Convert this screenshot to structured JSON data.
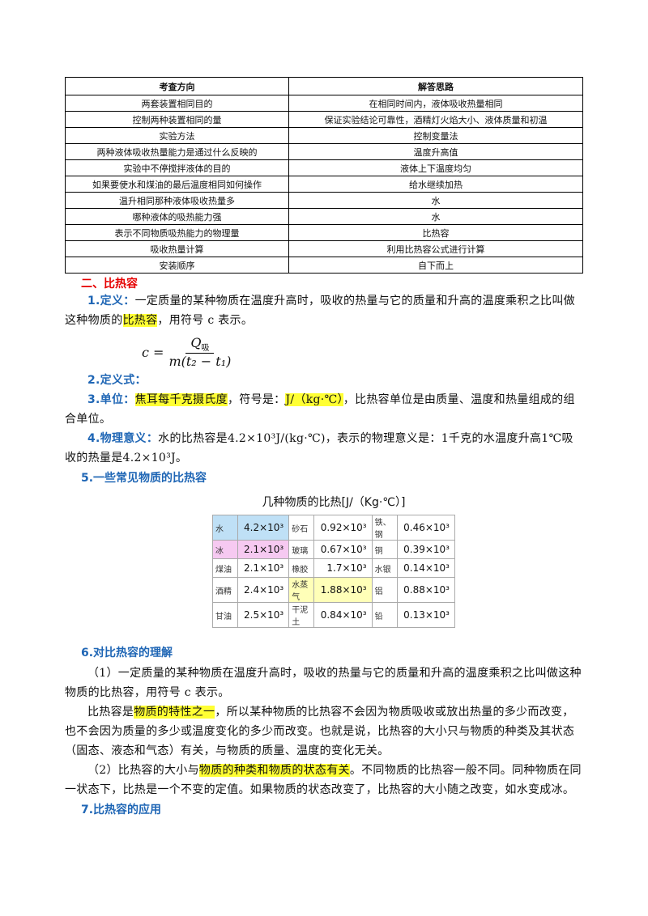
{
  "table": {
    "header": [
      "考查方向",
      "解答思路"
    ],
    "rows": [
      [
        "两套装置相同目的",
        "在相同时间内，液体吸收热量相同"
      ],
      [
        "控制两种装置相同的量",
        "保证实验结论可靠性，酒精灯火焰大小、液体质量和初温"
      ],
      [
        "实验方法",
        "控制变量法"
      ],
      [
        "两种液体吸收热量能力是通过什么反映的",
        "温度升高值"
      ],
      [
        "实验中不停搅拌液体的目的",
        "液体上下温度均匀"
      ],
      [
        "如果要使水和煤油的最后温度相同如何操作",
        "给水继续加热"
      ],
      [
        "温升相同那种液体吸收热量多",
        "水"
      ],
      [
        "哪种液体的吸热能力强",
        "水"
      ],
      [
        "表示不同物质吸热能力的物理量",
        "比热容"
      ],
      [
        "吸收热量计算",
        "利用比热容公式进行计算"
      ],
      [
        "安装顺序",
        "自下而上"
      ]
    ]
  },
  "section": {
    "title": "二、比热容",
    "items": [
      {
        "label": "1.定义：",
        "text": [
          {
            "text": "一定质量的某种物质在温度升高时，吸收的热量与它的质量和升高的温度乘积之比叫做这种物质的"
          },
          {
            "text": "比热容",
            "highlight": true
          },
          {
            "text": "，用符号 c 表示。"
          }
        ]
      },
      {
        "label": "2.定义式：",
        "formula": {
          "lhs": "c =",
          "numerator": "Q",
          "numerator_sub": "吸",
          "denominator": "m(t₂ − t₁)"
        }
      },
      {
        "label": "3.单位：",
        "text": [
          {
            "text": "焦耳每千克摄氏度",
            "highlight": true
          },
          {
            "text": "，符号是："
          },
          {
            "text": "J/（kg·℃）",
            "highlight": true
          },
          {
            "text": "，比热容单位是由质量、温度和热量组成的组合单位。"
          }
        ]
      },
      {
        "label": "4.物理意义：",
        "text": [
          {
            "text": "水的比热容是4.2×10³J/(kg·℃)，表示的物理意义是：1千克的水温度升高1℃吸收的热量是4.2×10³J。"
          }
        ]
      },
      {
        "label": "5.一些常见物质的比热容",
        "spec_table": {
          "title": "几种物质的比热[J/（Kg·℃）]",
          "rows": [
            [
              {
                "name": "水",
                "value": "4.2×10³",
                "color": "#bfe0f6"
              },
              {
                "name": "砂石",
                "value": "0.92×10³"
              },
              {
                "name": "铁、钢",
                "value": "0.46×10³"
              }
            ],
            [
              {
                "name": "冰",
                "value": "2.1×10³",
                "color": "#f6c9f1"
              },
              {
                "name": "玻璃",
                "value": "0.67×10³"
              },
              {
                "name": "铜",
                "value": "0.39×10³"
              }
            ],
            [
              {
                "name": "煤油",
                "value": "2.1×10³"
              },
              {
                "name": "橡胶",
                "value": "1.7×10³"
              },
              {
                "name": "水银",
                "value": "0.14×10³"
              }
            ],
            [
              {
                "name": "酒精",
                "value": "2.4×10³"
              },
              {
                "name": "水蒸气",
                "value": "1.88×10³",
                "color": "#ffffb8"
              },
              {
                "name": "铝",
                "value": "0.88×10³"
              }
            ],
            [
              {
                "name": "甘油",
                "value": "2.5×10³"
              },
              {
                "name": "干泥土",
                "value": "0.84×10³"
              },
              {
                "name": "铅",
                "value": "0.13×10³"
              }
            ]
          ]
        }
      },
      {
        "label": "6.对比热容的理解",
        "paragraphs": [
          [
            {
              "text": "（1）一定质量的某种物质在温度升高时，吸收的热量与它的质量和升高的温度乘积之比叫做这种物质的比热容，用符号 c 表示。"
            }
          ],
          [
            {
              "text": "比热容是"
            },
            {
              "text": "物质的特性之一",
              "highlight": true
            },
            {
              "text": "，所以某种物质的比热容不会因为物质吸收或放出热量的多少而改变，也不会因为质量的多少或温度变化的多少而改变。也就是说，比热容的大小只与物质的种类及其状态（固态、液态和气态）有关，与物质的质量、温度的变化无关。"
            }
          ],
          [
            {
              "text": "（2）比热容的大小与"
            },
            {
              "text": "物质的种类和物质的状态有关",
              "highlight": true
            },
            {
              "text": "。不同物质的比热容一般不同。同种物质在同一状态下，比热是一个不变的定值。如果物质的状态改变了，比热容的大小随之改变，如水变成冰。"
            }
          ]
        ]
      },
      {
        "label": "7.比热容的应用"
      }
    ]
  }
}
